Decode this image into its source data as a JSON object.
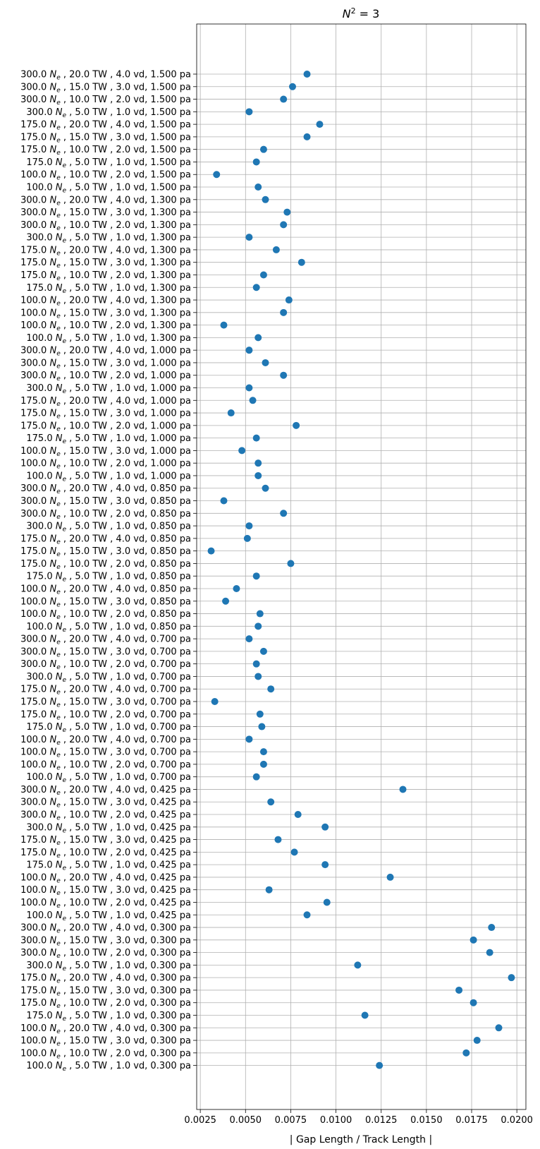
{
  "chart_data": {
    "type": "scatter",
    "title_base": "N",
    "title_sup": "2",
    "title_rest": " = 3",
    "xlabel": "| Gap Length / Track Length |",
    "ylabel": "",
    "xlim": [
      0.0023,
      0.0205
    ],
    "xticks": [
      "0.0025",
      "0.0050",
      "0.0075",
      "0.0100",
      "0.0125",
      "0.0150",
      "0.0175",
      "0.0200"
    ],
    "xtick_values": [
      0.0025,
      0.005,
      0.0075,
      0.01,
      0.0125,
      0.015,
      0.0175,
      0.02
    ],
    "grid": true,
    "marker_color": "#1f77b4",
    "categories": [
      {
        "ne": "300.0",
        "tw": "20.0",
        "vd": "4.0",
        "pa": "1.500"
      },
      {
        "ne": "300.0",
        "tw": "15.0",
        "vd": "3.0",
        "pa": "1.500"
      },
      {
        "ne": "300.0",
        "tw": "10.0",
        "vd": "2.0",
        "pa": "1.500"
      },
      {
        "ne": "300.0",
        "tw": "5.0",
        "vd": "1.0",
        "pa": "1.500"
      },
      {
        "ne": "175.0",
        "tw": "20.0",
        "vd": "4.0",
        "pa": "1.500"
      },
      {
        "ne": "175.0",
        "tw": "15.0",
        "vd": "3.0",
        "pa": "1.500"
      },
      {
        "ne": "175.0",
        "tw": "10.0",
        "vd": "2.0",
        "pa": "1.500"
      },
      {
        "ne": "175.0",
        "tw": "5.0",
        "vd": "1.0",
        "pa": "1.500"
      },
      {
        "ne": "100.0",
        "tw": "10.0",
        "vd": "2.0",
        "pa": "1.500"
      },
      {
        "ne": "100.0",
        "tw": "5.0",
        "vd": "1.0",
        "pa": "1.500"
      },
      {
        "ne": "300.0",
        "tw": "20.0",
        "vd": "4.0",
        "pa": "1.300"
      },
      {
        "ne": "300.0",
        "tw": "15.0",
        "vd": "3.0",
        "pa": "1.300"
      },
      {
        "ne": "300.0",
        "tw": "10.0",
        "vd": "2.0",
        "pa": "1.300"
      },
      {
        "ne": "300.0",
        "tw": "5.0",
        "vd": "1.0",
        "pa": "1.300"
      },
      {
        "ne": "175.0",
        "tw": "20.0",
        "vd": "4.0",
        "pa": "1.300"
      },
      {
        "ne": "175.0",
        "tw": "15.0",
        "vd": "3.0",
        "pa": "1.300"
      },
      {
        "ne": "175.0",
        "tw": "10.0",
        "vd": "2.0",
        "pa": "1.300"
      },
      {
        "ne": "175.0",
        "tw": "5.0",
        "vd": "1.0",
        "pa": "1.300"
      },
      {
        "ne": "100.0",
        "tw": "20.0",
        "vd": "4.0",
        "pa": "1.300"
      },
      {
        "ne": "100.0",
        "tw": "15.0",
        "vd": "3.0",
        "pa": "1.300"
      },
      {
        "ne": "100.0",
        "tw": "10.0",
        "vd": "2.0",
        "pa": "1.300"
      },
      {
        "ne": "100.0",
        "tw": "5.0",
        "vd": "1.0",
        "pa": "1.300"
      },
      {
        "ne": "300.0",
        "tw": "20.0",
        "vd": "4.0",
        "pa": "1.000"
      },
      {
        "ne": "300.0",
        "tw": "15.0",
        "vd": "3.0",
        "pa": "1.000"
      },
      {
        "ne": "300.0",
        "tw": "10.0",
        "vd": "2.0",
        "pa": "1.000"
      },
      {
        "ne": "300.0",
        "tw": "5.0",
        "vd": "1.0",
        "pa": "1.000"
      },
      {
        "ne": "175.0",
        "tw": "20.0",
        "vd": "4.0",
        "pa": "1.000"
      },
      {
        "ne": "175.0",
        "tw": "15.0",
        "vd": "3.0",
        "pa": "1.000"
      },
      {
        "ne": "175.0",
        "tw": "10.0",
        "vd": "2.0",
        "pa": "1.000"
      },
      {
        "ne": "175.0",
        "tw": "5.0",
        "vd": "1.0",
        "pa": "1.000"
      },
      {
        "ne": "100.0",
        "tw": "15.0",
        "vd": "3.0",
        "pa": "1.000"
      },
      {
        "ne": "100.0",
        "tw": "10.0",
        "vd": "2.0",
        "pa": "1.000"
      },
      {
        "ne": "100.0",
        "tw": "5.0",
        "vd": "1.0",
        "pa": "1.000"
      },
      {
        "ne": "300.0",
        "tw": "20.0",
        "vd": "4.0",
        "pa": "0.850"
      },
      {
        "ne": "300.0",
        "tw": "15.0",
        "vd": "3.0",
        "pa": "0.850"
      },
      {
        "ne": "300.0",
        "tw": "10.0",
        "vd": "2.0",
        "pa": "0.850"
      },
      {
        "ne": "300.0",
        "tw": "5.0",
        "vd": "1.0",
        "pa": "0.850"
      },
      {
        "ne": "175.0",
        "tw": "20.0",
        "vd": "4.0",
        "pa": "0.850"
      },
      {
        "ne": "175.0",
        "tw": "15.0",
        "vd": "3.0",
        "pa": "0.850"
      },
      {
        "ne": "175.0",
        "tw": "10.0",
        "vd": "2.0",
        "pa": "0.850"
      },
      {
        "ne": "175.0",
        "tw": "5.0",
        "vd": "1.0",
        "pa": "0.850"
      },
      {
        "ne": "100.0",
        "tw": "20.0",
        "vd": "4.0",
        "pa": "0.850"
      },
      {
        "ne": "100.0",
        "tw": "15.0",
        "vd": "3.0",
        "pa": "0.850"
      },
      {
        "ne": "100.0",
        "tw": "10.0",
        "vd": "2.0",
        "pa": "0.850"
      },
      {
        "ne": "100.0",
        "tw": "5.0",
        "vd": "1.0",
        "pa": "0.850"
      },
      {
        "ne": "300.0",
        "tw": "20.0",
        "vd": "4.0",
        "pa": "0.700"
      },
      {
        "ne": "300.0",
        "tw": "15.0",
        "vd": "3.0",
        "pa": "0.700"
      },
      {
        "ne": "300.0",
        "tw": "10.0",
        "vd": "2.0",
        "pa": "0.700"
      },
      {
        "ne": "300.0",
        "tw": "5.0",
        "vd": "1.0",
        "pa": "0.700"
      },
      {
        "ne": "175.0",
        "tw": "20.0",
        "vd": "4.0",
        "pa": "0.700"
      },
      {
        "ne": "175.0",
        "tw": "15.0",
        "vd": "3.0",
        "pa": "0.700"
      },
      {
        "ne": "175.0",
        "tw": "10.0",
        "vd": "2.0",
        "pa": "0.700"
      },
      {
        "ne": "175.0",
        "tw": "5.0",
        "vd": "1.0",
        "pa": "0.700"
      },
      {
        "ne": "100.0",
        "tw": "20.0",
        "vd": "4.0",
        "pa": "0.700"
      },
      {
        "ne": "100.0",
        "tw": "15.0",
        "vd": "3.0",
        "pa": "0.700"
      },
      {
        "ne": "100.0",
        "tw": "10.0",
        "vd": "2.0",
        "pa": "0.700"
      },
      {
        "ne": "100.0",
        "tw": "5.0",
        "vd": "1.0",
        "pa": "0.700"
      },
      {
        "ne": "300.0",
        "tw": "20.0",
        "vd": "4.0",
        "pa": "0.425"
      },
      {
        "ne": "300.0",
        "tw": "15.0",
        "vd": "3.0",
        "pa": "0.425"
      },
      {
        "ne": "300.0",
        "tw": "10.0",
        "vd": "2.0",
        "pa": "0.425"
      },
      {
        "ne": "300.0",
        "tw": "5.0",
        "vd": "1.0",
        "pa": "0.425"
      },
      {
        "ne": "175.0",
        "tw": "15.0",
        "vd": "3.0",
        "pa": "0.425"
      },
      {
        "ne": "175.0",
        "tw": "10.0",
        "vd": "2.0",
        "pa": "0.425"
      },
      {
        "ne": "175.0",
        "tw": "5.0",
        "vd": "1.0",
        "pa": "0.425"
      },
      {
        "ne": "100.0",
        "tw": "20.0",
        "vd": "4.0",
        "pa": "0.425"
      },
      {
        "ne": "100.0",
        "tw": "15.0",
        "vd": "3.0",
        "pa": "0.425"
      },
      {
        "ne": "100.0",
        "tw": "10.0",
        "vd": "2.0",
        "pa": "0.425"
      },
      {
        "ne": "100.0",
        "tw": "5.0",
        "vd": "1.0",
        "pa": "0.425"
      },
      {
        "ne": "300.0",
        "tw": "20.0",
        "vd": "4.0",
        "pa": "0.300"
      },
      {
        "ne": "300.0",
        "tw": "15.0",
        "vd": "3.0",
        "pa": "0.300"
      },
      {
        "ne": "300.0",
        "tw": "10.0",
        "vd": "2.0",
        "pa": "0.300"
      },
      {
        "ne": "300.0",
        "tw": "5.0",
        "vd": "1.0",
        "pa": "0.300"
      },
      {
        "ne": "175.0",
        "tw": "20.0",
        "vd": "4.0",
        "pa": "0.300"
      },
      {
        "ne": "175.0",
        "tw": "15.0",
        "vd": "3.0",
        "pa": "0.300"
      },
      {
        "ne": "175.0",
        "tw": "10.0",
        "vd": "2.0",
        "pa": "0.300"
      },
      {
        "ne": "175.0",
        "tw": "5.0",
        "vd": "1.0",
        "pa": "0.300"
      },
      {
        "ne": "100.0",
        "tw": "20.0",
        "vd": "4.0",
        "pa": "0.300"
      },
      {
        "ne": "100.0",
        "tw": "15.0",
        "vd": "3.0",
        "pa": "0.300"
      },
      {
        "ne": "100.0",
        "tw": "10.0",
        "vd": "2.0",
        "pa": "0.300"
      },
      {
        "ne": "100.0",
        "tw": "5.0",
        "vd": "1.0",
        "pa": "0.300"
      }
    ],
    "values": [
      0.0084,
      0.0076,
      0.0071,
      0.0052,
      0.0091,
      0.0084,
      0.006,
      0.0056,
      0.0034,
      0.0057,
      0.0061,
      0.0073,
      0.0071,
      0.0052,
      0.0067,
      0.0081,
      0.006,
      0.0056,
      0.0074,
      0.0071,
      0.0038,
      0.0057,
      0.0052,
      0.0061,
      0.0071,
      0.0052,
      0.0054,
      0.0042,
      0.0078,
      0.0056,
      0.0048,
      0.0057,
      0.0057,
      0.0061,
      0.0038,
      0.0071,
      0.0052,
      0.0051,
      0.0031,
      0.0075,
      0.0056,
      0.0045,
      0.0039,
      0.0058,
      0.0057,
      0.0052,
      0.006,
      0.0056,
      0.0057,
      0.0064,
      0.0033,
      0.0058,
      0.0059,
      0.0052,
      0.006,
      0.006,
      0.0056,
      0.0137,
      0.0064,
      0.0079,
      0.0094,
      0.0068,
      0.0077,
      0.0094,
      0.013,
      0.0063,
      0.0095,
      0.0084,
      0.0186,
      0.0176,
      0.0185,
      0.0112,
      0.0197,
      0.0168,
      0.0176,
      0.0116,
      0.019,
      0.0178,
      0.0172,
      0.0124
    ]
  }
}
